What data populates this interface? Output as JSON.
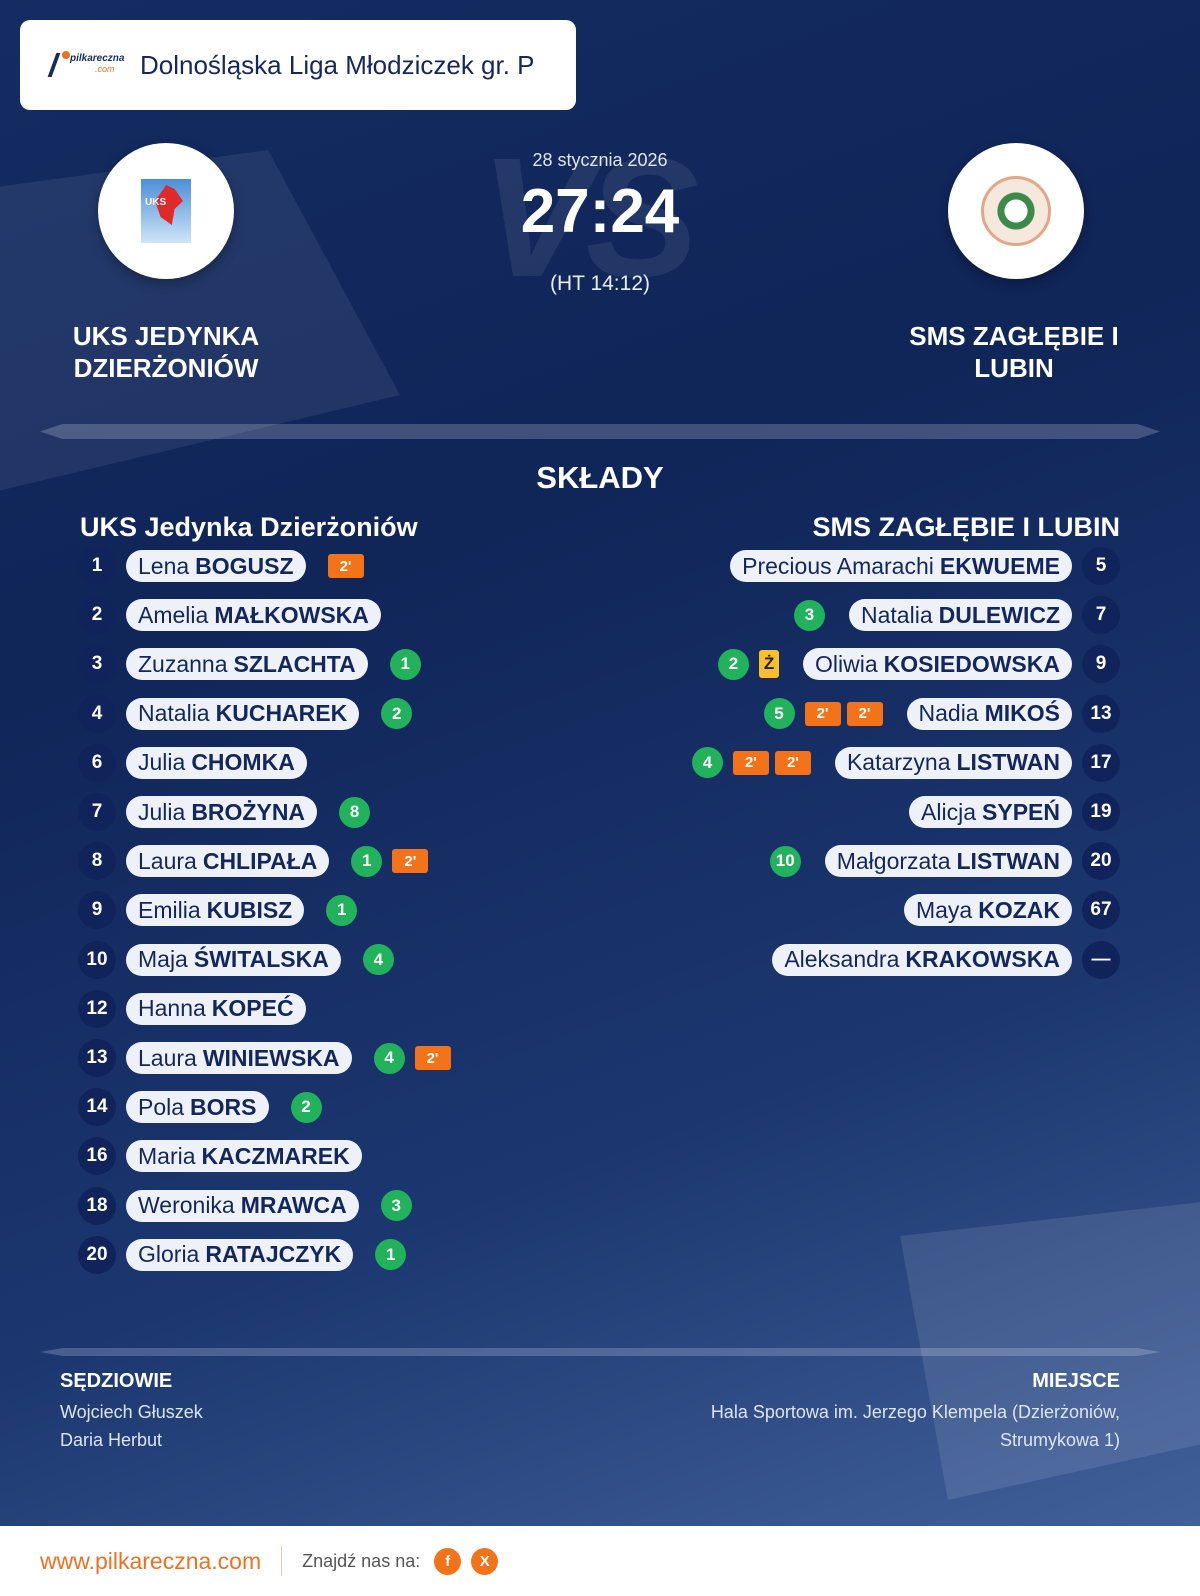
{
  "header": {
    "logo_text": "pilkareczna",
    "logo_sub": ".com",
    "league": "Dolnośląska Liga Młodziczek gr. P"
  },
  "match": {
    "date": "28 stycznia 2026",
    "score": "27:24",
    "halftime": "(HT 14:12)",
    "vs": "VS"
  },
  "home": {
    "name": "UKS JEDYNKA DZIERŻONIÓW",
    "lineup_title": "UKS Jedynka Dzierżoniów",
    "crest_text": "UKS",
    "players": [
      {
        "no": "1",
        "first": "Lena",
        "last": "BOGUSZ",
        "events": [
          {
            "t": "2min",
            "v": "2'"
          }
        ]
      },
      {
        "no": "2",
        "first": "Amelia",
        "last": "MAŁKOWSKA",
        "events": []
      },
      {
        "no": "3",
        "first": "Zuzanna",
        "last": "SZLACHTA",
        "events": [
          {
            "t": "goal",
            "v": "1"
          }
        ]
      },
      {
        "no": "4",
        "first": "Natalia",
        "last": "KUCHAREK",
        "events": [
          {
            "t": "goal",
            "v": "2"
          }
        ]
      },
      {
        "no": "6",
        "first": "Julia",
        "last": "CHOMKA",
        "events": []
      },
      {
        "no": "7",
        "first": "Julia",
        "last": "BROŻYNA",
        "events": [
          {
            "t": "goal",
            "v": "8"
          }
        ]
      },
      {
        "no": "8",
        "first": "Laura",
        "last": "CHLIPAŁA",
        "events": [
          {
            "t": "goal",
            "v": "1"
          },
          {
            "t": "2min",
            "v": "2'"
          }
        ]
      },
      {
        "no": "9",
        "first": "Emilia",
        "last": "KUBISZ",
        "events": [
          {
            "t": "goal",
            "v": "1"
          }
        ]
      },
      {
        "no": "10",
        "first": "Maja",
        "last": "ŚWITALSKA",
        "events": [
          {
            "t": "goal",
            "v": "4"
          }
        ]
      },
      {
        "no": "12",
        "first": "Hanna",
        "last": "KOPEĆ",
        "events": []
      },
      {
        "no": "13",
        "first": "Laura",
        "last": "WINIEWSKA",
        "events": [
          {
            "t": "goal",
            "v": "4"
          },
          {
            "t": "2min",
            "v": "2'"
          }
        ]
      },
      {
        "no": "14",
        "first": "Pola",
        "last": "BORS",
        "events": [
          {
            "t": "goal",
            "v": "2"
          }
        ]
      },
      {
        "no": "16",
        "first": "Maria",
        "last": "KACZMAREK",
        "events": []
      },
      {
        "no": "18",
        "first": "Weronika",
        "last": "MRAWCA",
        "events": [
          {
            "t": "goal",
            "v": "3"
          }
        ]
      },
      {
        "no": "20",
        "first": "Gloria",
        "last": "RATAJCZYK",
        "events": [
          {
            "t": "goal",
            "v": "1"
          }
        ]
      }
    ]
  },
  "away": {
    "name": "SMS ZAGŁĘBIE  I LUBIN",
    "lineup_title": "SMS ZAGŁĘBIE  I  LUBIN",
    "players": [
      {
        "no": "5",
        "first": "Precious Amarachi",
        "last": "EKWUEME",
        "events": []
      },
      {
        "no": "7",
        "first": "Natalia",
        "last": "DULEWICZ",
        "events": [
          {
            "t": "goal",
            "v": "3"
          }
        ]
      },
      {
        "no": "9",
        "first": "Oliwia",
        "last": "KOSIEDOWSKA",
        "events": [
          {
            "t": "goal",
            "v": "2"
          },
          {
            "t": "card",
            "v": "Ż"
          }
        ]
      },
      {
        "no": "13",
        "first": "Nadia",
        "last": "MIKOŚ",
        "events": [
          {
            "t": "goal",
            "v": "5"
          },
          {
            "t": "2min",
            "v": "2'"
          },
          {
            "t": "2min",
            "v": "2'"
          }
        ]
      },
      {
        "no": "17",
        "first": "Katarzyna",
        "last": "LISTWAN",
        "events": [
          {
            "t": "goal",
            "v": "4"
          },
          {
            "t": "2min",
            "v": "2'"
          },
          {
            "t": "2min",
            "v": "2'"
          }
        ]
      },
      {
        "no": "19",
        "first": "Alicja",
        "last": "SYPEŃ",
        "events": []
      },
      {
        "no": "20",
        "first": "Małgorzata",
        "last": "LISTWAN",
        "events": [
          {
            "t": "goal",
            "v": "10"
          }
        ]
      },
      {
        "no": "67",
        "first": "Maya",
        "last": "KOZAK",
        "events": []
      },
      {
        "no": "—",
        "first": "Aleksandra",
        "last": "KRAKOWSKA",
        "events": []
      }
    ]
  },
  "section_title": "SKŁADY",
  "referees": {
    "label": "SĘDZIOWIE",
    "names": [
      "Wojciech Głuszek",
      "Daria Herbut"
    ]
  },
  "venue": {
    "label": "MIEJSCE",
    "line1": "Hala Sportowa im. Jerzego Klempela (Dzierżoniów,",
    "line2": "Strumykowa 1)"
  },
  "footer": {
    "site": "www.pilkareczna.com",
    "find_us": "Znajdź nas na:",
    "social": [
      {
        "icon": "facebook-icon",
        "label": "f"
      },
      {
        "icon": "x-icon",
        "label": "X"
      }
    ]
  },
  "colors": {
    "goal": "#21b25b",
    "suspension": "#f47318",
    "yellow_card": "#f7c02a",
    "accent": "#f07020",
    "navy": "#14285f"
  }
}
